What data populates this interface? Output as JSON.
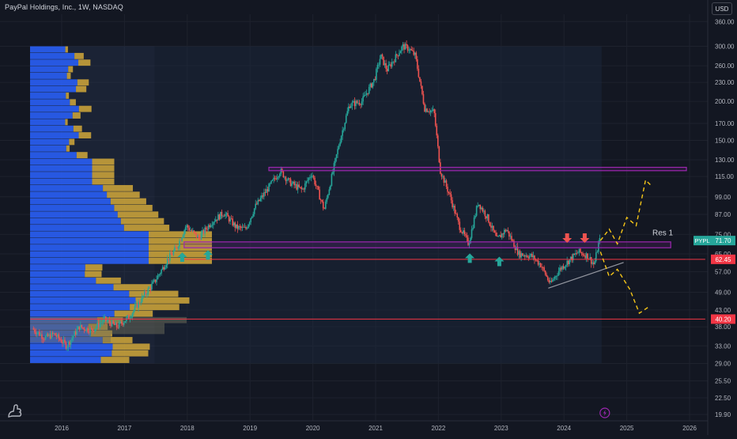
{
  "header": {
    "title": "PayPal Holdings, Inc., 1W, NASDAQ",
    "currency_button": "USD"
  },
  "colors": {
    "background": "#131722",
    "up": "#26a69a",
    "down": "#ef5350",
    "resistance_box": "#9c27b0",
    "red_line": "#f23645",
    "volume_profile_blue": "#2962ff",
    "volume_profile_gold": "#c8a13a",
    "projection": "#f5c518",
    "trendline": "#9598a1"
  },
  "chart_data": {
    "type": "candlestick",
    "title": "PayPal Holdings, Inc., 1W, NASDAQ",
    "y_scale": "log",
    "y_ticks": [
      360,
      300,
      260,
      230,
      200,
      170,
      150,
      130,
      115,
      99,
      87,
      75,
      65,
      57,
      49,
      43,
      38,
      33,
      29,
      25.5,
      22.5,
      19.9
    ],
    "x_ticks": [
      "2016",
      "2017",
      "2018",
      "2019",
      "2020",
      "2021",
      "2022",
      "2023",
      "2024",
      "2025",
      "2026"
    ],
    "x_range": [
      2015.5,
      2026.25
    ],
    "y_range": [
      19.0,
      380
    ],
    "price_path": [
      [
        2015.55,
        37.5
      ],
      [
        2015.75,
        35
      ],
      [
        2015.9,
        36
      ],
      [
        2016.1,
        33
      ],
      [
        2016.3,
        38
      ],
      [
        2016.5,
        37
      ],
      [
        2016.7,
        40
      ],
      [
        2016.9,
        38
      ],
      [
        2017.1,
        41
      ],
      [
        2017.3,
        47
      ],
      [
        2017.5,
        53
      ],
      [
        2017.7,
        62
      ],
      [
        2017.85,
        68
      ],
      [
        2018.0,
        80
      ],
      [
        2018.2,
        73
      ],
      [
        2018.4,
        82
      ],
      [
        2018.6,
        88
      ],
      [
        2018.8,
        79
      ],
      [
        2018.95,
        78
      ],
      [
        2019.1,
        92
      ],
      [
        2019.3,
        105
      ],
      [
        2019.5,
        120
      ],
      [
        2019.65,
        110
      ],
      [
        2019.85,
        104
      ],
      [
        2020.0,
        118
      ],
      [
        2020.2,
        90
      ],
      [
        2020.3,
        110
      ],
      [
        2020.45,
        150
      ],
      [
        2020.6,
        195
      ],
      [
        2020.8,
        200
      ],
      [
        2021.0,
        235
      ],
      [
        2021.1,
        280
      ],
      [
        2021.2,
        252
      ],
      [
        2021.3,
        270
      ],
      [
        2021.45,
        300
      ],
      [
        2021.55,
        295
      ],
      [
        2021.65,
        280
      ],
      [
        2021.8,
        190
      ],
      [
        2021.95,
        185
      ],
      [
        2022.05,
        120
      ],
      [
        2022.2,
        100
      ],
      [
        2022.35,
        80
      ],
      [
        2022.5,
        70
      ],
      [
        2022.65,
        95
      ],
      [
        2022.8,
        85
      ],
      [
        2022.95,
        72
      ],
      [
        2023.1,
        78
      ],
      [
        2023.3,
        65
      ],
      [
        2023.5,
        64
      ],
      [
        2023.65,
        60
      ],
      [
        2023.8,
        52
      ],
      [
        2023.95,
        58
      ],
      [
        2024.1,
        62
      ],
      [
        2024.25,
        66
      ],
      [
        2024.4,
        64
      ],
      [
        2024.5,
        60
      ],
      [
        2024.58,
        71.7
      ]
    ],
    "horizontal_levels": [
      {
        "name": "resistance-zone-top",
        "price_low": 120,
        "price_high": 123,
        "x_from": 2019.3,
        "x_to": 2025.95
      },
      {
        "name": "resistance-zone-res1",
        "price_low": 68,
        "price_high": 71,
        "x_from": 2017.95,
        "x_to": 2025.7
      },
      {
        "name": "support-line-62",
        "price": 62.45,
        "x_from": 2017.95,
        "x_to": 2026.25
      },
      {
        "name": "support-line-40",
        "price": 40.2,
        "x_from": 2015.5,
        "x_to": 2026.25
      }
    ],
    "trendline": [
      [
        2023.75,
        50.5
      ],
      [
        2024.95,
        61
      ]
    ],
    "projection_up": [
      [
        2024.58,
        71.7
      ],
      [
        2024.72,
        78
      ],
      [
        2024.85,
        70
      ],
      [
        2025.0,
        85
      ],
      [
        2025.15,
        80
      ],
      [
        2025.3,
        112
      ],
      [
        2025.38,
        108
      ]
    ],
    "projection_down": [
      [
        2024.58,
        66
      ],
      [
        2024.72,
        55
      ],
      [
        2024.85,
        58
      ],
      [
        2025.05,
        50
      ],
      [
        2025.2,
        42
      ],
      [
        2025.35,
        44
      ]
    ],
    "up_arrows": [
      [
        2017.92,
        63.5
      ],
      [
        2018.33,
        64.5
      ],
      [
        2022.5,
        63
      ],
      [
        2022.97,
        61.5
      ]
    ],
    "down_arrows": [
      [
        2024.05,
        73
      ],
      [
        2024.33,
        73
      ]
    ],
    "annotations": [
      "Res 1"
    ],
    "last_price_label": "PYPL",
    "last_price": "71.70",
    "level_labels": [
      "62.45",
      "40.20"
    ],
    "volume_profile": {
      "price_range": [
        29,
        300
      ],
      "bins": 48
    }
  }
}
